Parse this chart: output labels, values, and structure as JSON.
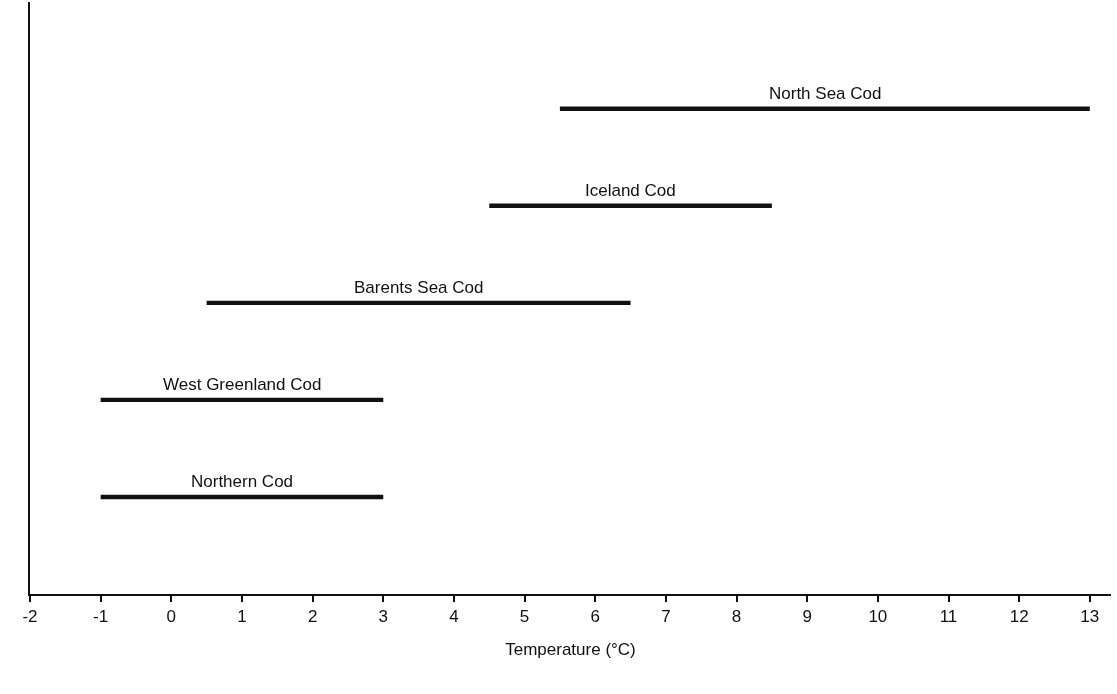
{
  "chart_data": {
    "type": "bar",
    "orientation": "horizontal",
    "xlabel": "Temperature (°C)",
    "categories": [
      "North Sea Cod",
      "Iceland Cod",
      "Barents Sea Cod",
      "West Greenland Cod",
      "Northern Cod"
    ],
    "base": [
      5.5,
      4.5,
      0.5,
      -1,
      -1
    ],
    "values": [
      7.5,
      4,
      6,
      4,
      4
    ],
    "color": "#111111",
    "xlim": [
      -2,
      13.3
    ],
    "xticks": [
      -2,
      -1,
      0,
      1,
      2,
      3,
      4,
      5,
      6,
      7,
      8,
      9,
      10,
      11,
      12,
      13
    ],
    "tick_labels": "x"
  }
}
